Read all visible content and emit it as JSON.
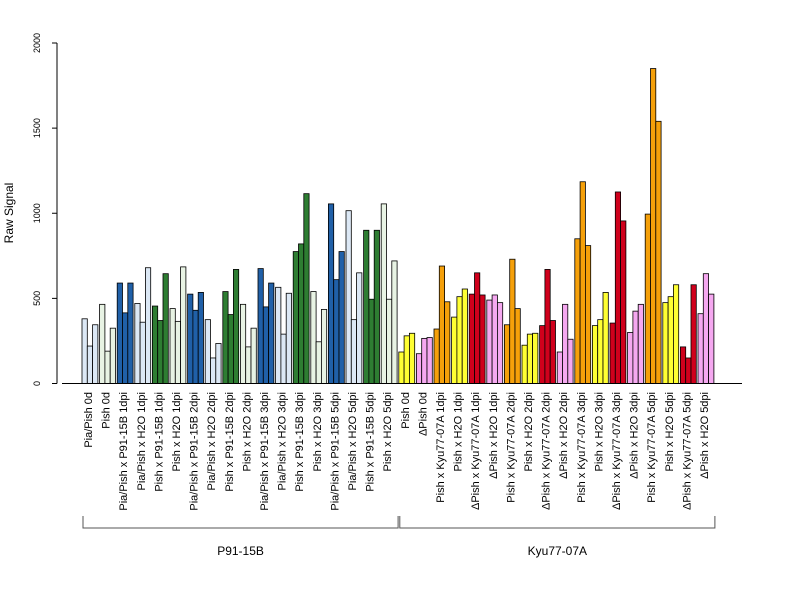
{
  "chart_data": {
    "type": "bar",
    "ylabel": "Raw Signal",
    "ylim": [
      0,
      2000
    ],
    "yticks": [
      0,
      500,
      1000,
      1500,
      2000
    ],
    "grid": false,
    "colors": {
      "light_blue": "#dce8f5",
      "dark_blue": "#2060a8",
      "light_green": "#e8f3e4",
      "dark_green": "#2e7d32",
      "yellow": "#ffff33",
      "pink": "#f5a8f0",
      "orange": "#f5a00a",
      "red": "#d0001c"
    },
    "groups": [
      {
        "name": "P91-15B",
        "categories": [
          {
            "label": "Pia/Pish 0d",
            "color": "light_blue",
            "values": [
              380,
              220,
              345
            ]
          },
          {
            "label": "Pish 0d",
            "color": "light_green",
            "values": [
              465,
              190,
              325
            ]
          },
          {
            "label": "Pia/Pish x P91-15B 1dpi",
            "color": "dark_blue",
            "values": [
              590,
              415,
              590
            ]
          },
          {
            "label": "Pia/Pish x H2O 1dpi",
            "color": "light_blue",
            "values": [
              470,
              360,
              680
            ]
          },
          {
            "label": "Pish x P91-15B 1dpi",
            "color": "dark_green",
            "values": [
              455,
              370,
              645
            ]
          },
          {
            "label": "Pish x H2O 1dpi",
            "color": "light_green",
            "values": [
              440,
              365,
              685
            ]
          },
          {
            "label": "Pia/Pish x P91-15B 2dpi",
            "color": "dark_blue",
            "values": [
              525,
              430,
              535
            ]
          },
          {
            "label": "Pia/Pish x H2O 2dpi",
            "color": "light_blue",
            "values": [
              375,
              150,
              235
            ]
          },
          {
            "label": "Pish x P91-15B 2dpi",
            "color": "dark_green",
            "values": [
              540,
              405,
              670
            ]
          },
          {
            "label": "Pish x H2O 2dpi",
            "color": "light_green",
            "values": [
              465,
              215,
              325
            ]
          },
          {
            "label": "Pia/Pish x P91-15B 3dpi",
            "color": "dark_blue",
            "values": [
              675,
              450,
              590
            ]
          },
          {
            "label": "Pia/Pish x H2O 3dpi",
            "color": "light_blue",
            "values": [
              565,
              290,
              530
            ]
          },
          {
            "label": "Pish x P91-15B 3dpi",
            "color": "dark_green",
            "values": [
              775,
              820,
              1115
            ]
          },
          {
            "label": "Pish x H2O 3dpi",
            "color": "light_green",
            "values": [
              540,
              245,
              435
            ]
          },
          {
            "label": "Pia/Pish x P91-15B 5dpi",
            "color": "dark_blue",
            "values": [
              1055,
              610,
              775
            ]
          },
          {
            "label": "Pia/Pish x H2O 5dpi",
            "color": "light_blue",
            "values": [
              1015,
              375,
              650
            ]
          },
          {
            "label": "Pish x P91-15B 5dpi",
            "color": "dark_green",
            "values": [
              900,
              495,
              900
            ]
          },
          {
            "label": "Pish x H2O 5dpi",
            "color": "light_green",
            "values": [
              1055,
              495,
              720
            ]
          }
        ]
      },
      {
        "name": "Kyu77-07A",
        "categories": [
          {
            "label": "Pish 0d",
            "color": "yellow",
            "values": [
              185,
              280,
              295
            ]
          },
          {
            "label": "ΔPish 0d",
            "color": "pink",
            "values": [
              175,
              265,
              270
            ]
          },
          {
            "label": "Pish x Kyu77-07A 1dpi",
            "color": "orange",
            "values": [
              320,
              690,
              480
            ]
          },
          {
            "label": "Pish x H2O 1dpi",
            "color": "yellow",
            "values": [
              390,
              510,
              555
            ]
          },
          {
            "label": "ΔPish x Kyu77-07A 1dpi",
            "color": "red",
            "values": [
              525,
              650,
              520
            ]
          },
          {
            "label": "ΔPish x H2O 1dpi",
            "color": "pink",
            "values": [
              490,
              520,
              475
            ]
          },
          {
            "label": "Pish x Kyu77-07A 2dpi",
            "color": "orange",
            "values": [
              345,
              730,
              440
            ]
          },
          {
            "label": "Pish x H2O 2dpi",
            "color": "yellow",
            "values": [
              225,
              290,
              295
            ]
          },
          {
            "label": "ΔPish x Kyu77-07A 2dpi",
            "color": "red",
            "values": [
              340,
              670,
              370
            ]
          },
          {
            "label": "ΔPish x H2O 2dpi",
            "color": "pink",
            "values": [
              185,
              465,
              260
            ]
          },
          {
            "label": "Pish x Kyu77-07A 3dpi",
            "color": "orange",
            "values": [
              850,
              1185,
              810
            ]
          },
          {
            "label": "Pish x H2O 3dpi",
            "color": "yellow",
            "values": [
              340,
              375,
              535
            ]
          },
          {
            "label": "ΔPish x Kyu77-07A 3dpi",
            "color": "red",
            "values": [
              355,
              1125,
              955
            ]
          },
          {
            "label": "ΔPish x H2O 3dpi",
            "color": "pink",
            "values": [
              300,
              425,
              465
            ]
          },
          {
            "label": "Pish x Kyu77-07A 5dpi",
            "color": "orange",
            "values": [
              995,
              1850,
              1540
            ]
          },
          {
            "label": "Pish x H2O 5dpi",
            "color": "yellow",
            "values": [
              475,
              510,
              580
            ]
          },
          {
            "label": "ΔPish x Kyu77-07A 5dpi",
            "color": "red",
            "values": [
              215,
              150,
              580
            ]
          },
          {
            "label": "ΔPish x H2O 5dpi",
            "color": "pink",
            "values": [
              410,
              645,
              525
            ]
          }
        ]
      }
    ]
  }
}
